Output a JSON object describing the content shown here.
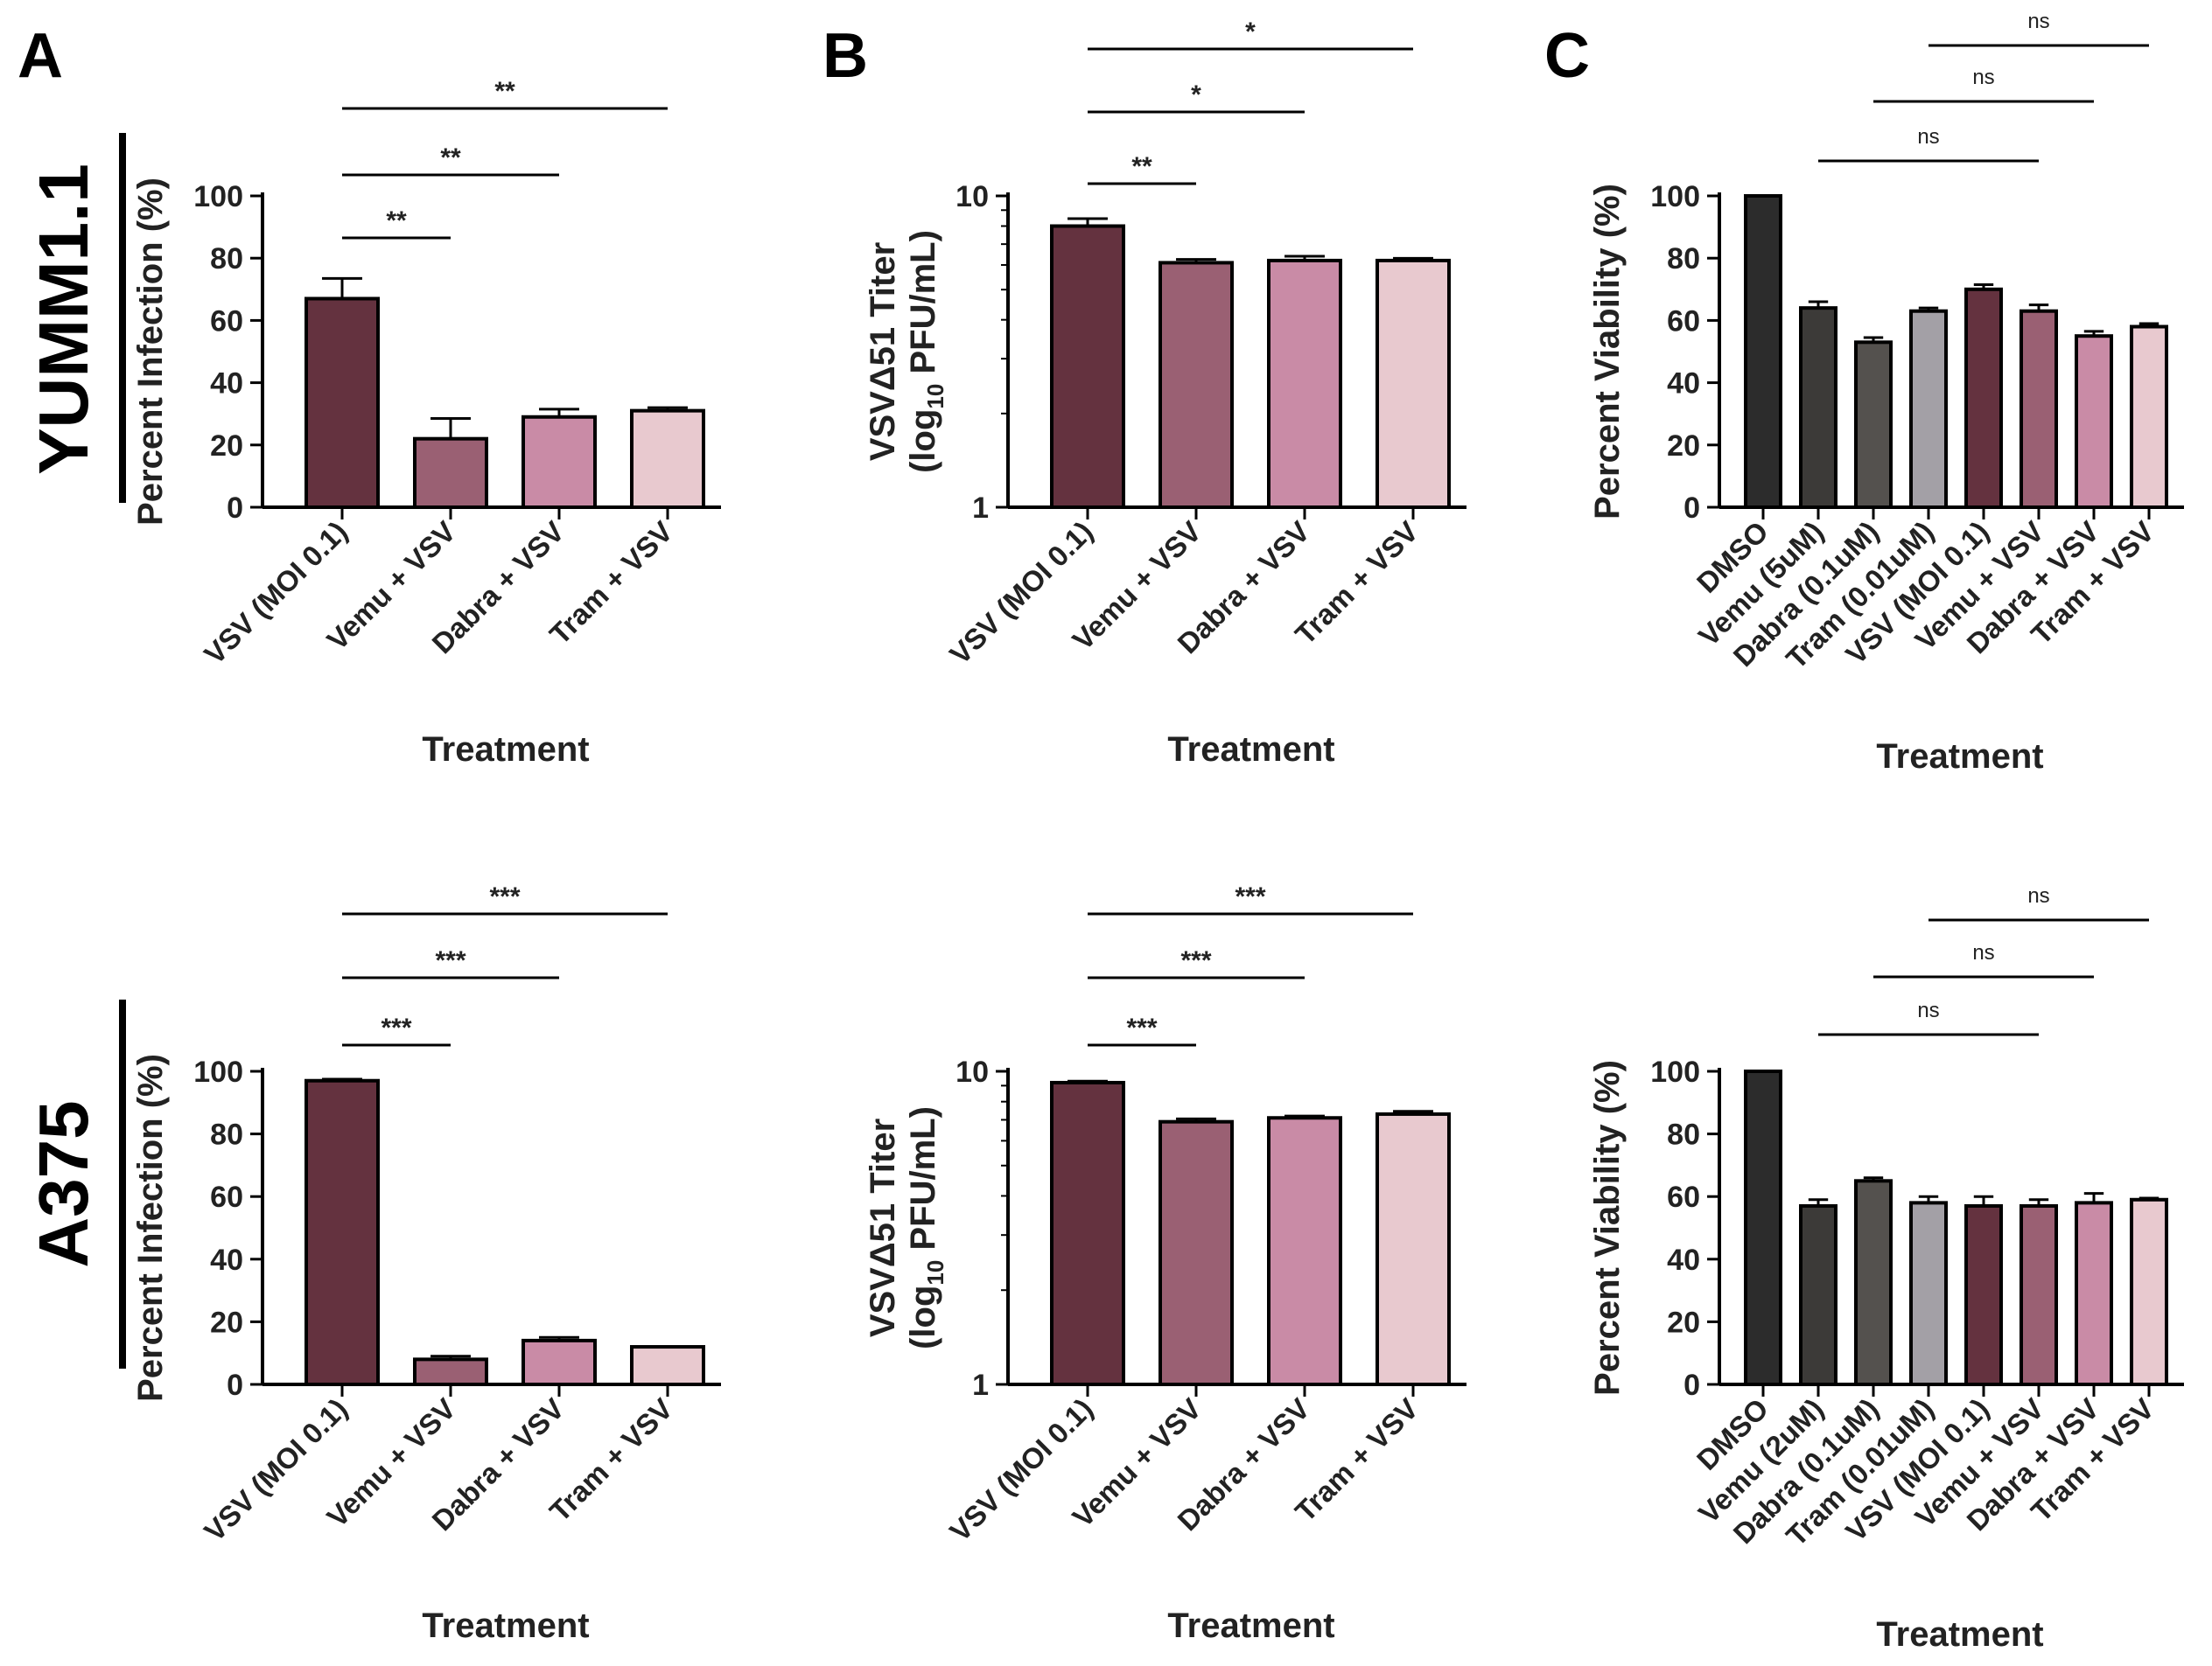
{
  "panel_letters": [
    "A",
    "B",
    "C"
  ],
  "row_labels": [
    "YUMM1.1",
    "A375"
  ],
  "colors": {
    "vsv": "#64323f",
    "vemu_vsv": "#9a6073",
    "dabra_vsv": "#c98ba6",
    "tram_vsv": "#e8c9cf",
    "dmso": "#2c2c2c",
    "vemu": "#3c3a38",
    "dabra": "#54514e",
    "tram": "#a3a0a6"
  },
  "chart_data": [
    {
      "id": "A1",
      "type": "bar",
      "scale": "linear",
      "ylabel": "Percent Infection (%)",
      "xlabel": "Treatment",
      "ylim": [
        0,
        100
      ],
      "yticks": [
        "0",
        "20",
        "40",
        "60",
        "80",
        "100"
      ],
      "categories": [
        "VSV (MOI 0.1)",
        "Vemu + VSV",
        "Dabra + VSV",
        "Tram + VSV"
      ],
      "values": [
        67,
        22,
        29,
        31
      ],
      "errors": [
        6.5,
        6.5,
        2.5,
        1
      ],
      "colors": [
        "vsv",
        "vemu_vsv",
        "dabra_vsv",
        "tram_vsv"
      ],
      "significance": [
        {
          "from": 0,
          "to": 1,
          "label": "**"
        },
        {
          "from": 0,
          "to": 2,
          "label": "**"
        },
        {
          "from": 0,
          "to": 3,
          "label": "**"
        }
      ]
    },
    {
      "id": "B1",
      "type": "bar",
      "scale": "log",
      "ylabel": "VSVΔ51 Titer",
      "ylabel_line2_prefix": "(log",
      "ylabel_line2_sub": "10",
      "ylabel_line2_suffix": " PFU/mL)",
      "xlabel": "Treatment",
      "ylim": [
        1,
        10
      ],
      "yticks": [
        "1",
        "10"
      ],
      "categories": [
        "VSV (MOI 0.1)",
        "Vemu + VSV",
        "Dabra + VSV",
        "Tram + VSV"
      ],
      "values": [
        8.0,
        6.1,
        6.2,
        6.2
      ],
      "errors": [
        0.45,
        0.15,
        0.2,
        0.1
      ],
      "colors": [
        "vsv",
        "vemu_vsv",
        "dabra_vsv",
        "tram_vsv"
      ],
      "significance": [
        {
          "from": 0,
          "to": 1,
          "label": "**"
        },
        {
          "from": 0,
          "to": 2,
          "label": "*"
        },
        {
          "from": 0,
          "to": 3,
          "label": "*"
        }
      ]
    },
    {
      "id": "C1",
      "type": "bar",
      "scale": "linear",
      "ylabel": "Percent Viability (%)",
      "xlabel": "Treatment",
      "ylim": [
        0,
        100
      ],
      "yticks": [
        "0",
        "20",
        "40",
        "60",
        "80",
        "100"
      ],
      "categories": [
        "DMSO",
        "Vemu (5uM)",
        "Dabra (0.1uM)",
        "Tram (0.01uM)",
        "VSV (MOI 0.1)",
        "Vemu + VSV",
        "Dabra + VSV",
        "Tram + VSV"
      ],
      "values": [
        100,
        64,
        53,
        63,
        70,
        63,
        55,
        58
      ],
      "errors": [
        0,
        2,
        1.5,
        1,
        1.5,
        2,
        1.5,
        1
      ],
      "colors": [
        "dmso",
        "vemu",
        "dabra",
        "tram",
        "vsv",
        "vemu_vsv",
        "dabra_vsv",
        "tram_vsv"
      ],
      "significance": [
        {
          "from": 1,
          "to": 5,
          "label": "ns"
        },
        {
          "from": 2,
          "to": 6,
          "label": "ns"
        },
        {
          "from": 3,
          "to": 7,
          "label": "ns"
        }
      ]
    },
    {
      "id": "A2",
      "type": "bar",
      "scale": "linear",
      "ylabel": "Percent Infection (%)",
      "xlabel": "Treatment",
      "ylim": [
        0,
        100
      ],
      "yticks": [
        "0",
        "20",
        "40",
        "60",
        "80",
        "100"
      ],
      "categories": [
        "VSV (MOI 0.1)",
        "Vemu + VSV",
        "Dabra + VSV",
        "Tram + VSV"
      ],
      "values": [
        97,
        8,
        14,
        12
      ],
      "errors": [
        0.5,
        1,
        1,
        0
      ],
      "colors": [
        "vsv",
        "vemu_vsv",
        "dabra_vsv",
        "tram_vsv"
      ],
      "significance": [
        {
          "from": 0,
          "to": 1,
          "label": "***"
        },
        {
          "from": 0,
          "to": 2,
          "label": "***"
        },
        {
          "from": 0,
          "to": 3,
          "label": "***"
        }
      ]
    },
    {
      "id": "B2",
      "type": "bar",
      "scale": "log",
      "ylabel": "VSVΔ51 Titer",
      "ylabel_line2_prefix": "(log",
      "ylabel_line2_sub": "10",
      "ylabel_line2_suffix": " PFU/mL)",
      "xlabel": "Treatment",
      "ylim": [
        1,
        10
      ],
      "yticks": [
        "1",
        "10"
      ],
      "categories": [
        "VSV (MOI 0.1)",
        "Vemu + VSV",
        "Dabra + VSV",
        "Tram + VSV"
      ],
      "values": [
        9.2,
        6.9,
        7.1,
        7.3
      ],
      "errors": [
        0.1,
        0.15,
        0.1,
        0.15
      ],
      "colors": [
        "vsv",
        "vemu_vsv",
        "dabra_vsv",
        "tram_vsv"
      ],
      "significance": [
        {
          "from": 0,
          "to": 1,
          "label": "***"
        },
        {
          "from": 0,
          "to": 2,
          "label": "***"
        },
        {
          "from": 0,
          "to": 3,
          "label": "***"
        }
      ]
    },
    {
      "id": "C2",
      "type": "bar",
      "scale": "linear",
      "ylabel": "Percent Viability (%)",
      "xlabel": "Treatment",
      "ylim": [
        0,
        100
      ],
      "yticks": [
        "0",
        "20",
        "40",
        "60",
        "80",
        "100"
      ],
      "categories": [
        "DMSO",
        "Vemu (2uM)",
        "Dabra (0.1uM)",
        "Tram (0.01uM)",
        "VSV (MOI 0.1)",
        "Vemu + VSV",
        "Dabra + VSV",
        "Tram + VSV"
      ],
      "values": [
        100,
        57,
        65,
        58,
        57,
        57,
        58,
        59
      ],
      "errors": [
        0,
        2,
        1,
        2,
        3,
        2,
        3,
        0.5
      ],
      "colors": [
        "dmso",
        "vemu",
        "dabra",
        "tram",
        "vsv",
        "vemu_vsv",
        "dabra_vsv",
        "tram_vsv"
      ],
      "significance": [
        {
          "from": 1,
          "to": 5,
          "label": "ns"
        },
        {
          "from": 2,
          "to": 6,
          "label": "ns"
        },
        {
          "from": 3,
          "to": 7,
          "label": "ns"
        }
      ]
    }
  ]
}
